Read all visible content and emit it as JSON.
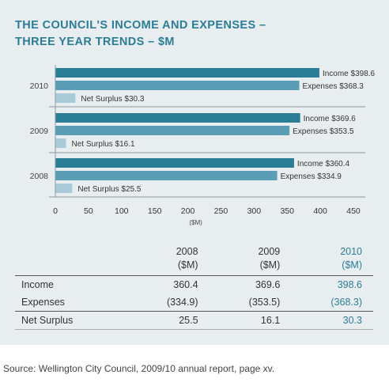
{
  "title_lines": [
    "THE COUNCIL'S INCOME AND EXPENSES –",
    "THREE YEAR TRENDS – $M"
  ],
  "chart_data": {
    "type": "bar",
    "orientation": "horizontal",
    "categories": [
      "2010",
      "2009",
      "2008"
    ],
    "series": [
      {
        "name": "Income",
        "values": [
          398.6,
          369.6,
          360.4
        ],
        "labels": [
          "Income $398.6",
          "Income $369.6",
          "Income $360.4"
        ],
        "color": "#2b7d96"
      },
      {
        "name": "Expenses",
        "values": [
          368.3,
          353.5,
          334.9
        ],
        "labels": [
          "Expenses $368.3",
          "Expenses $353.5",
          "Expenses $334.9"
        ],
        "color": "#5b9db4"
      },
      {
        "name": "Net Surplus",
        "values": [
          30.3,
          16.1,
          25.5
        ],
        "labels": [
          "Net Surplus $30.3",
          "Net Surplus $16.1",
          "Net Surplus $25.5"
        ],
        "color": "#a9cad8"
      }
    ],
    "xticks": [
      "0",
      "50",
      "100",
      "150",
      "200",
      "250",
      "300",
      "350",
      "400",
      "450"
    ],
    "xlim": [
      0,
      450
    ],
    "xlabel": "($M)",
    "grid": false
  },
  "table": {
    "columns": [
      {
        "year": "2008",
        "unit": "($M)"
      },
      {
        "year": "2009",
        "unit": "($M)"
      },
      {
        "year": "2010",
        "unit": "($M)"
      }
    ],
    "rows": [
      {
        "label": "Income",
        "values": [
          "360.4",
          "369.6",
          "398.6"
        ]
      },
      {
        "label": "Expenses",
        "values": [
          "(334.9)",
          "(353.5)",
          "(368.3)"
        ]
      },
      {
        "label": "Net Surplus",
        "values": [
          "25.5",
          "16.1",
          "30.3"
        ]
      }
    ]
  },
  "source": "Source: Wellington City Council, 2009/10 annual report, page xv.",
  "colors": {
    "title": "#2b7d96",
    "income": "#2b7d96",
    "expenses": "#5b9db4",
    "surplus": "#a9cad8",
    "panel": "#e8eef0"
  }
}
